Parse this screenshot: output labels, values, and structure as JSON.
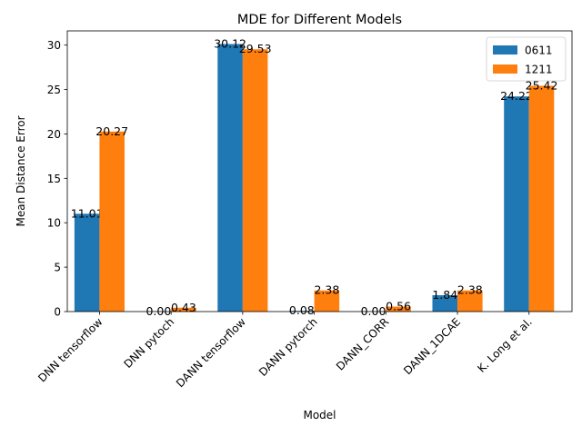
{
  "chart_data": {
    "type": "bar",
    "title": "MDE for Different Models",
    "xlabel": "Model",
    "ylabel": "Mean Distance Error",
    "categories": [
      "DNN tensorflow",
      "DNN pytoch",
      "DANN tensorflow",
      "DANN pytorch",
      "DANN_CORR",
      "DANN_1DCAE",
      "K. Long et al."
    ],
    "series": [
      {
        "name": "0611",
        "color": "#1f77b4",
        "values": [
          11.01,
          0.0,
          30.12,
          0.08,
          0.0,
          1.84,
          24.22
        ],
        "labels": [
          "11.01",
          "0.00",
          "30.12",
          "0.08",
          "0.00",
          "1.84",
          "24.22"
        ]
      },
      {
        "name": "1211",
        "color": "#ff7f0e",
        "values": [
          20.27,
          0.43,
          29.53,
          2.38,
          0.56,
          2.38,
          25.42
        ],
        "labels": [
          "20.27",
          "0.43",
          "29.53",
          "2.38",
          "0.56",
          "2.38",
          "25.42"
        ]
      }
    ],
    "ylim": [
      0,
      31.6
    ],
    "yticks": [
      "0",
      "5",
      "10",
      "15",
      "20",
      "25",
      "30"
    ],
    "xtick_rotation": 45,
    "legend": "top-right",
    "grid": false
  }
}
